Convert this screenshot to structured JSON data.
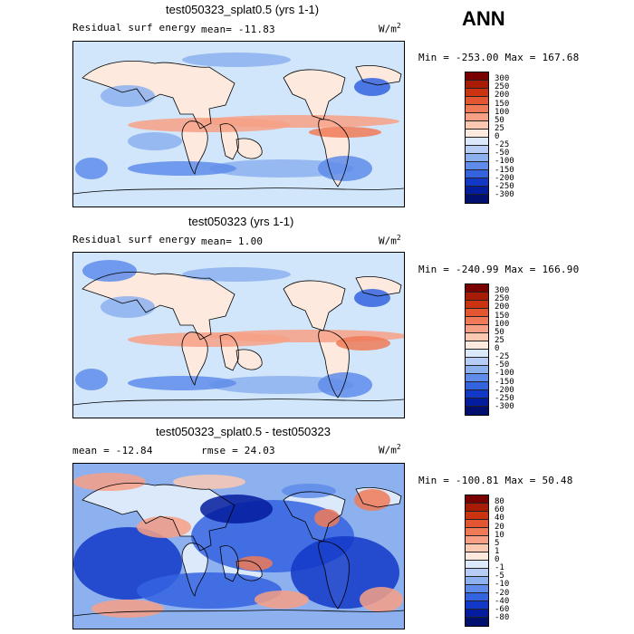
{
  "page_label": "ANN",
  "unit_text": "W/m",
  "unit_exp": "2",
  "panels": [
    {
      "title": "test050323_splat0.5 (yrs 1-1)",
      "left_label": "Residual surf energy",
      "stat_text": "mean=  -11.83",
      "minmax": "Min = -253.00  Max = 167.68"
    },
    {
      "title": "test050323 (yrs 1-1)",
      "left_label": "Residual surf energy",
      "stat_text": "mean=   1.00",
      "minmax": "Min = -240.99  Max = 166.90"
    },
    {
      "title": "test050323_splat0.5 - test050323",
      "left_label": "mean = -12.84",
      "stat_text": "rmse =  24.03",
      "minmax": "Min = -100.81  Max =  50.48"
    }
  ],
  "colorbars": [
    {
      "labels": [
        "300",
        "250",
        "200",
        "150",
        "100",
        "50",
        "25",
        "0",
        "-25",
        "-50",
        "-100",
        "-150",
        "-200",
        "-250",
        "-300"
      ]
    },
    {
      "labels": [
        "300",
        "250",
        "200",
        "150",
        "100",
        "50",
        "25",
        "0",
        "-25",
        "-50",
        "-100",
        "-150",
        "-200",
        "-250",
        "-300"
      ]
    },
    {
      "labels": [
        "80",
        "60",
        "40",
        "20",
        "10",
        "5",
        "1",
        "0",
        "-1",
        "-5",
        "-10",
        "-20",
        "-40",
        "-60",
        "-80"
      ]
    }
  ],
  "palette": [
    "#7a0000",
    "#a81c05",
    "#cc3311",
    "#e45531",
    "#f07a57",
    "#f7a085",
    "#fbc8b2",
    "#fde9dd",
    "#dce9fb",
    "#b7cdf5",
    "#8db0ee",
    "#5f8cea",
    "#3463e0",
    "#1238c8",
    "#041c9e",
    "#010f6e"
  ],
  "colors": {
    "ocean_light": "#d2e6fb",
    "land": "#fde9dd",
    "coast": "#000000"
  },
  "chart_data": [
    {
      "type": "heatmap",
      "title": "test050323_splat0.5 (yrs 1-1)",
      "variable": "Residual surf energy",
      "units": "W/m2",
      "mean": -11.83,
      "min": -253.0,
      "max": 167.68,
      "levels": [
        300,
        250,
        200,
        150,
        100,
        50,
        25,
        0,
        -25,
        -50,
        -100,
        -150,
        -200,
        -250,
        -300
      ]
    },
    {
      "type": "heatmap",
      "title": "test050323 (yrs 1-1)",
      "variable": "Residual surf energy",
      "units": "W/m2",
      "mean": 1.0,
      "min": -240.99,
      "max": 166.9,
      "levels": [
        300,
        250,
        200,
        150,
        100,
        50,
        25,
        0,
        -25,
        -50,
        -100,
        -150,
        -200,
        -250,
        -300
      ]
    },
    {
      "type": "heatmap",
      "title": "test050323_splat0.5 - test050323",
      "units": "W/m2",
      "mean": -12.84,
      "rmse": 24.03,
      "min": -100.81,
      "max": 50.48,
      "levels": [
        80,
        60,
        40,
        20,
        10,
        5,
        1,
        0,
        -1,
        -5,
        -10,
        -20,
        -40,
        -60,
        -80
      ]
    }
  ]
}
